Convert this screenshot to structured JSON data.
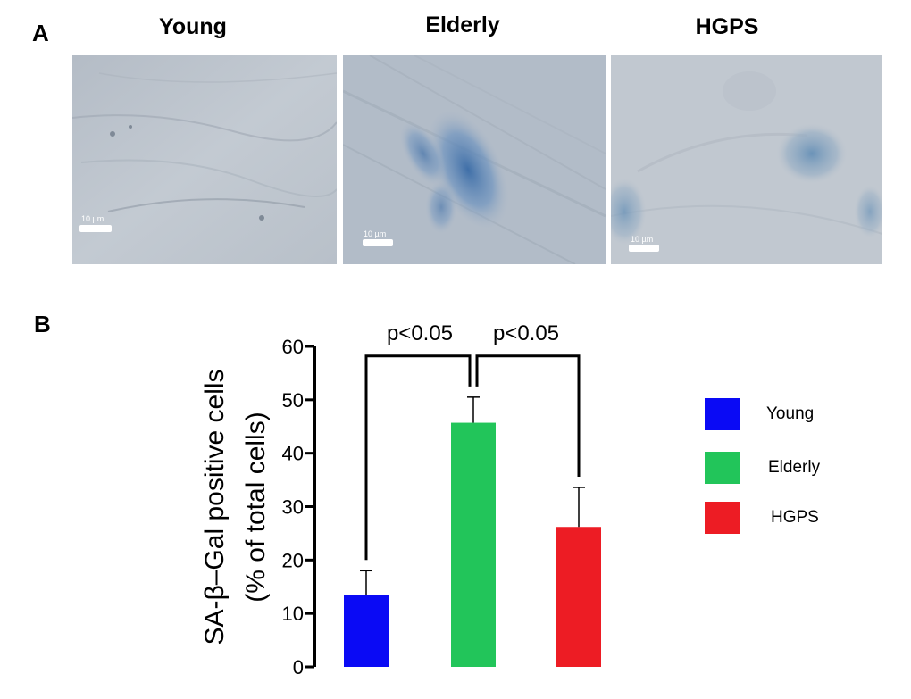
{
  "panel_a": {
    "letter": "A",
    "images": [
      {
        "title": "Young",
        "scale_bar": "10 µm",
        "stain": "none"
      },
      {
        "title": "Elderly",
        "scale_bar": "10 µm",
        "stain": "heavy"
      },
      {
        "title": "HGPS",
        "scale_bar": "10 µm",
        "stain": "moderate"
      }
    ]
  },
  "panel_b": {
    "letter": "B"
  },
  "chart_data": {
    "type": "bar",
    "categories": [
      "Young",
      "Elderly",
      "HGPS"
    ],
    "values": [
      13.5,
      45.7,
      26.2
    ],
    "errors": [
      4.5,
      4.8,
      7.4
    ],
    "colors": [
      "#0a0af5",
      "#22c55a",
      "#ed1c24"
    ],
    "ylabel_line1": "SA-β–Gal positive cells",
    "ylabel_line2": "(% of total cells)",
    "ylim": [
      0,
      60
    ],
    "yticks": [
      0,
      10,
      20,
      30,
      40,
      50,
      60
    ],
    "grid": false,
    "legend": {
      "position": "right",
      "entries": [
        "Young",
        "Elderly",
        "HGPS"
      ]
    },
    "significance": [
      {
        "from": "Young",
        "to": "Elderly",
        "label": "p<0.05"
      },
      {
        "from": "Elderly",
        "to": "HGPS",
        "label": "p<0.05"
      }
    ]
  }
}
